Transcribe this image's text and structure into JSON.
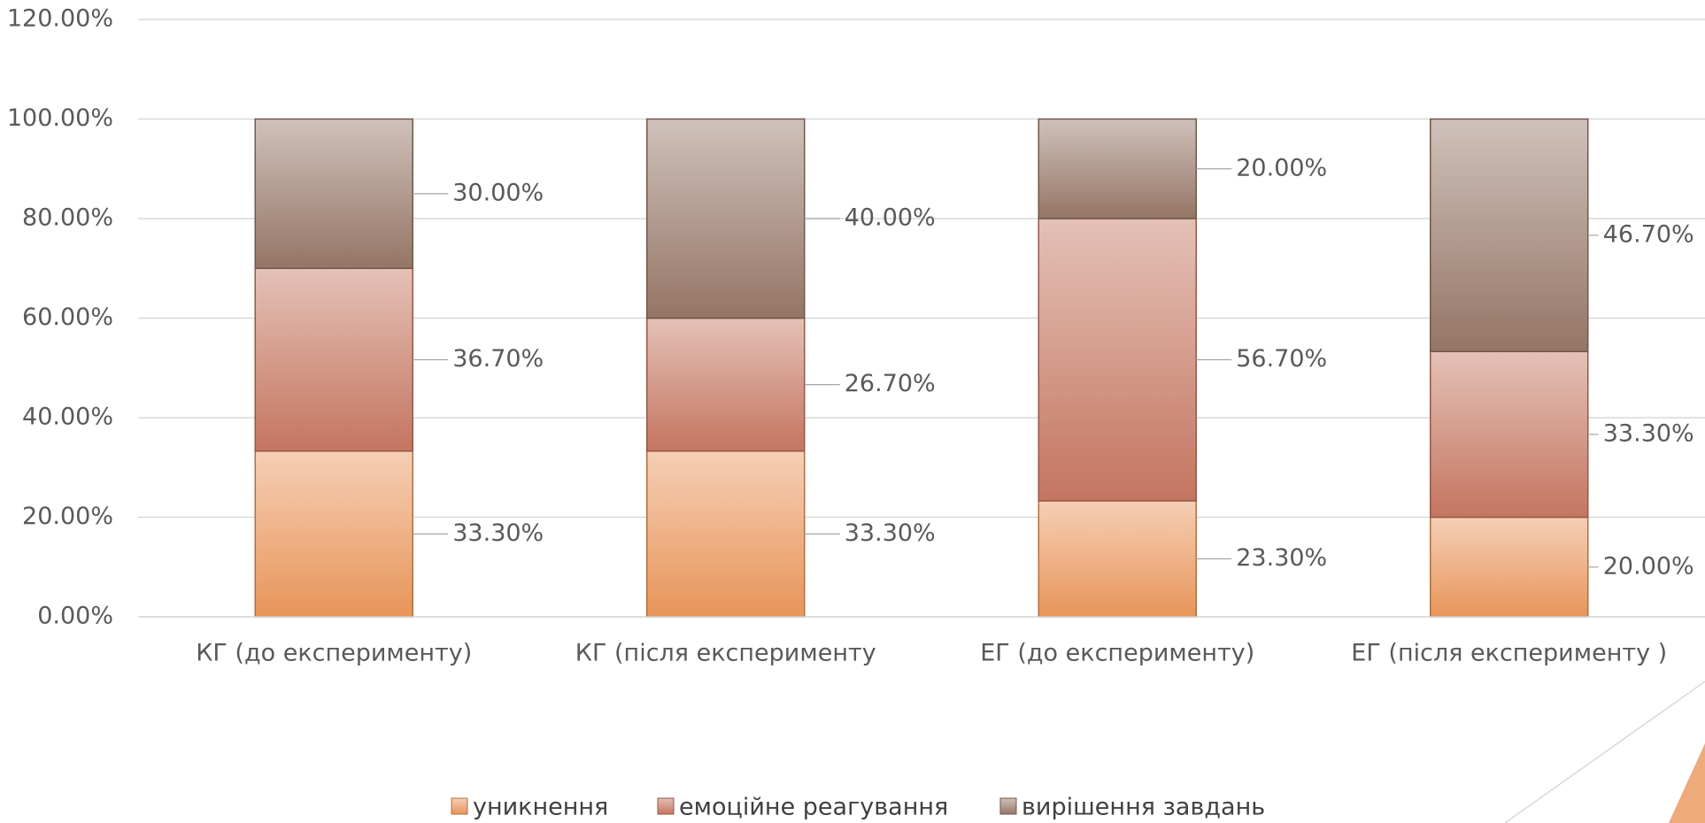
{
  "chart_data": {
    "type": "stacked-bar",
    "categories": [
      "КГ (до експерименту)",
      "КГ (після експерименту",
      "ЕГ (до експерименту)",
      "ЕГ (після експерименту )"
    ],
    "series": [
      {
        "name": "уникнення",
        "color": "#e8955a",
        "values": [
          33.3,
          33.3,
          23.3,
          20.0
        ],
        "value_labels": [
          "33.30%",
          "33.30%",
          "23.30%",
          "20.00%"
        ]
      },
      {
        "name": "емоційне реагування",
        "color": "#c47560",
        "values": [
          36.7,
          26.7,
          56.7,
          33.3
        ],
        "value_labels": [
          "36.70%",
          "26.70%",
          "56.70%",
          "33.30%"
        ]
      },
      {
        "name": "вирішення завдань",
        "color": "#957565",
        "values": [
          30.0,
          40.0,
          20.0,
          46.7
        ],
        "value_labels": [
          "30.00%",
          "40.00%",
          "20.00%",
          "46.70%"
        ]
      }
    ],
    "ylim": [
      0,
      120
    ],
    "yticks": [
      {
        "value": 0,
        "label": "0.00%"
      },
      {
        "value": 20,
        "label": "20.00%"
      },
      {
        "value": 40,
        "label": "40.00%"
      },
      {
        "value": 60,
        "label": "60.00%"
      },
      {
        "value": 80,
        "label": "80.00%"
      },
      {
        "value": 100,
        "label": "100.00%"
      },
      {
        "value": 120,
        "label": "120.00%"
      }
    ],
    "grid": true
  }
}
